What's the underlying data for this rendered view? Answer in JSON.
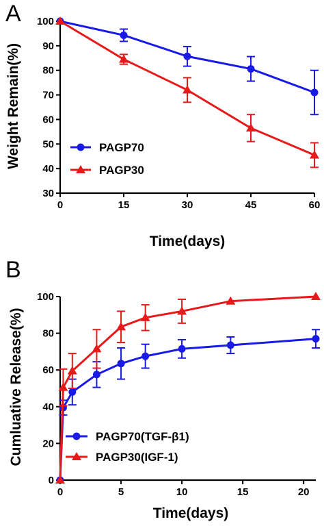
{
  "chart_data": [
    {
      "panel_label": "A",
      "type": "line",
      "xlabel": "Time(days)",
      "ylabel": "Weight Remain(%)",
      "xlim": [
        0,
        60
      ],
      "ylim": [
        30,
        100
      ],
      "xticks": [
        0,
        15,
        30,
        45,
        60
      ],
      "yticks": [
        30,
        40,
        50,
        60,
        70,
        80,
        90,
        100
      ],
      "grid": false,
      "legend_position": "bottom-left",
      "series": [
        {
          "name": "PAGP70",
          "color": "#1a1ae6",
          "marker": "circle",
          "x": [
            0,
            15,
            30,
            45,
            60
          ],
          "y": [
            100,
            94.3,
            85.7,
            80.6,
            71.0
          ],
          "err": [
            0,
            2.5,
            4.0,
            5.0,
            9.0
          ]
        },
        {
          "name": "PAGP30",
          "color": "#e61a1a",
          "marker": "triangle",
          "x": [
            0,
            15,
            30,
            45,
            60
          ],
          "y": [
            100,
            84.5,
            72.0,
            56.5,
            45.5
          ],
          "err": [
            0,
            2.0,
            5.0,
            5.5,
            5.0
          ]
        }
      ]
    },
    {
      "panel_label": "B",
      "type": "line",
      "xlabel": "Time(days)",
      "ylabel": "Cumluative Release(%)",
      "xlim": [
        0,
        21
      ],
      "ylim": [
        0,
        100
      ],
      "xticks": [
        0,
        5,
        10,
        15,
        20
      ],
      "yticks": [
        0,
        20,
        40,
        60,
        80,
        100
      ],
      "grid": false,
      "legend_position": "bottom-right",
      "series": [
        {
          "name": "PAGP70(TGF-β1)",
          "color": "#1a1ae6",
          "marker": "circle",
          "x": [
            0,
            0.25,
            1,
            3,
            5,
            7,
            10,
            14,
            21
          ],
          "y": [
            0,
            39.5,
            48.0,
            57.5,
            63.5,
            67.5,
            71.5,
            73.5,
            77.0
          ],
          "err": [
            0,
            4.0,
            7.0,
            7.0,
            8.5,
            6.5,
            5.0,
            4.5,
            5.0
          ]
        },
        {
          "name": "PAGP30(IGF-1)",
          "color": "#e61a1a",
          "marker": "triangle",
          "x": [
            0,
            0.25,
            1,
            3,
            5,
            7,
            10,
            14,
            21
          ],
          "y": [
            0,
            50.5,
            59.5,
            71.5,
            83.5,
            88.5,
            92.0,
            97.5,
            100
          ],
          "err": [
            0,
            10.0,
            9.5,
            10.5,
            8.5,
            7.0,
            6.5,
            0,
            0
          ]
        }
      ]
    }
  ]
}
